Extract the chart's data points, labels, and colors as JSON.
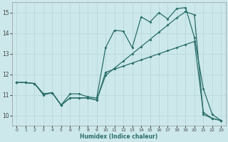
{
  "xlabel": "Humidex (Indice chaleur)",
  "background_color": "#cce8eb",
  "grid_color": "#b8d8dc",
  "line_color": "#2a6e6a",
  "xlim": [
    -0.5,
    23.5
  ],
  "ylim": [
    9.5,
    15.5
  ],
  "yticks": [
    10,
    11,
    12,
    13,
    14,
    15
  ],
  "xticks": [
    0,
    1,
    2,
    3,
    4,
    5,
    6,
    7,
    8,
    9,
    10,
    11,
    12,
    13,
    14,
    15,
    16,
    17,
    18,
    19,
    20,
    21,
    22,
    23
  ],
  "series1_x": [
    0,
    1,
    2,
    3,
    4,
    5,
    6,
    7,
    8,
    9,
    10,
    11,
    12,
    13,
    14,
    15,
    16,
    17,
    18,
    19,
    20,
    21,
    22,
    23
  ],
  "series1_y": [
    11.6,
    11.6,
    11.55,
    11.0,
    11.1,
    10.5,
    11.05,
    11.05,
    10.9,
    10.85,
    13.3,
    14.15,
    14.1,
    13.3,
    14.8,
    14.55,
    15.0,
    14.7,
    15.2,
    15.25,
    13.8,
    11.3,
    10.05,
    9.75
  ],
  "series2_x": [
    0,
    1,
    2,
    3,
    4,
    5,
    6,
    7,
    8,
    9,
    10,
    11,
    12,
    13,
    14,
    15,
    16,
    17,
    18,
    19,
    20,
    21,
    22,
    23
  ],
  "series2_y": [
    11.6,
    11.6,
    11.55,
    11.05,
    11.1,
    10.5,
    10.85,
    10.85,
    10.85,
    10.75,
    12.1,
    12.25,
    12.4,
    12.55,
    12.7,
    12.85,
    13.0,
    13.15,
    13.3,
    13.45,
    13.6,
    10.15,
    9.85,
    9.75
  ],
  "series3_x": [
    0,
    1,
    2,
    3,
    4,
    5,
    6,
    7,
    8,
    9,
    10,
    11,
    12,
    13,
    14,
    15,
    16,
    17,
    18,
    19,
    20,
    21,
    22,
    23
  ],
  "series3_y": [
    11.6,
    11.6,
    11.55,
    11.05,
    11.1,
    10.5,
    10.85,
    10.85,
    10.85,
    10.75,
    11.95,
    12.3,
    12.65,
    13.0,
    13.35,
    13.7,
    14.05,
    14.4,
    14.75,
    15.05,
    14.9,
    10.05,
    9.85,
    9.75
  ]
}
